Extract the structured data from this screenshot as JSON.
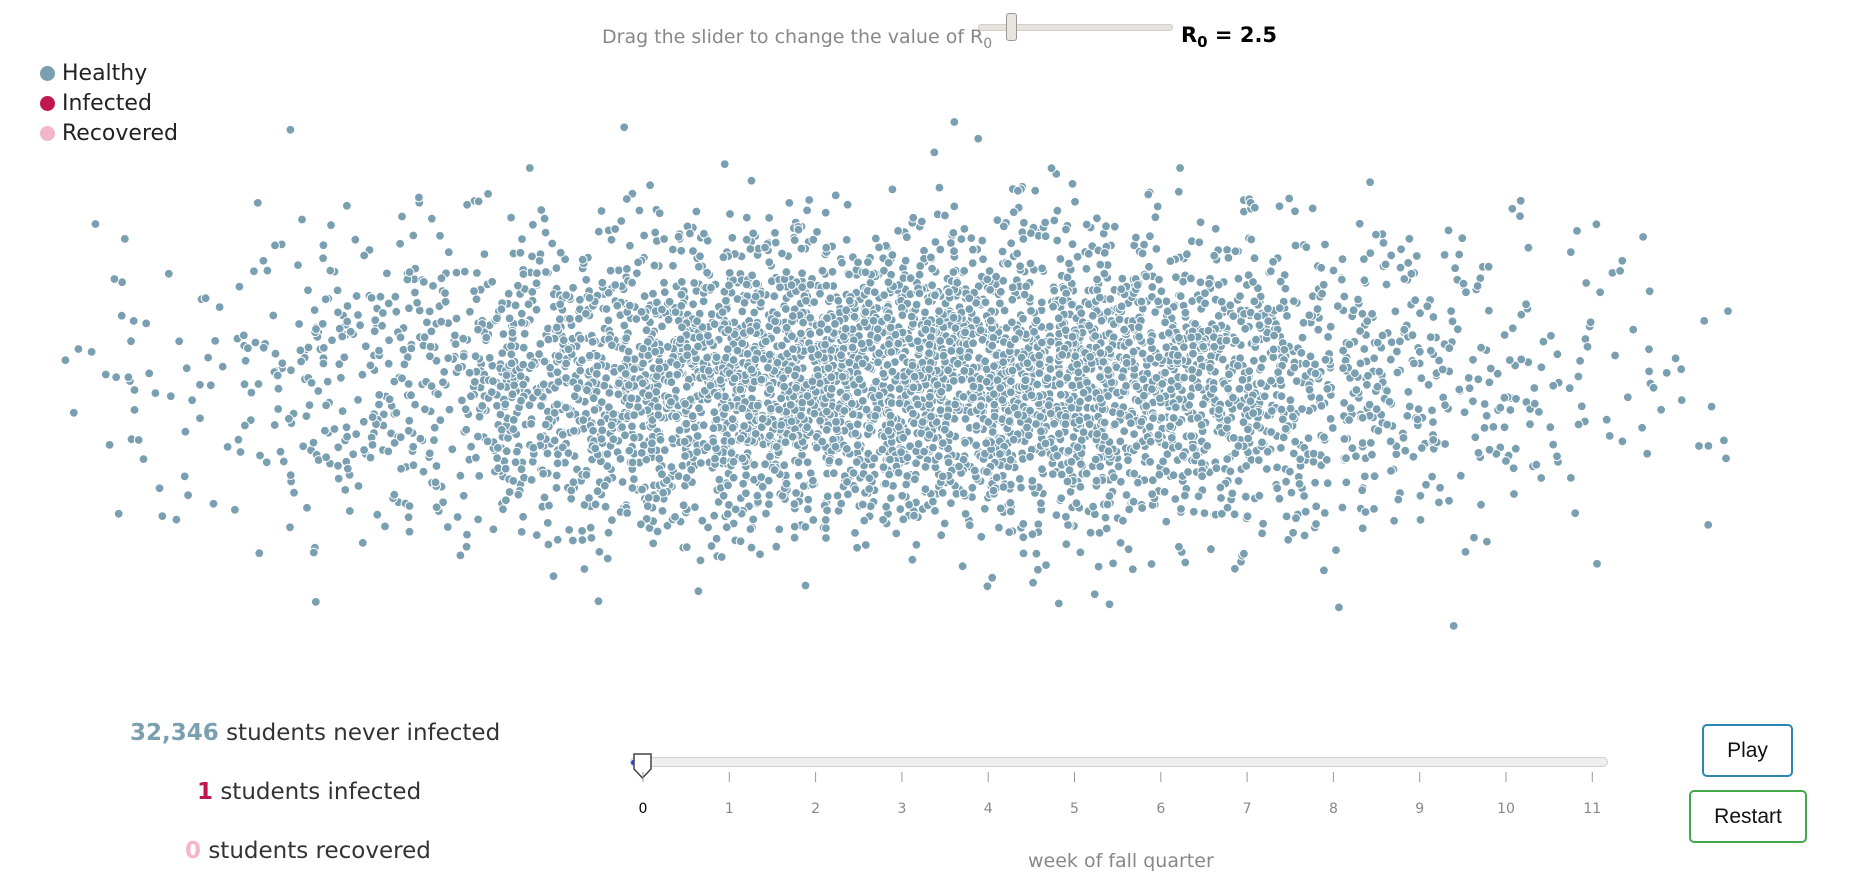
{
  "header": {
    "prompt_text": "Drag the slider to change the value of R",
    "prompt_sub": "0",
    "r0_symbol": "R",
    "r0_sub": "0",
    "r0_equals": " = 2.5",
    "r0_value": 2.5
  },
  "legend": [
    {
      "label": "Healthy",
      "color": "#7a9fb1"
    },
    {
      "label": "Infected",
      "color": "#c0184c"
    },
    {
      "label": "Recovered",
      "color": "#f2b6c6"
    }
  ],
  "stats": {
    "never_infected": {
      "number": "32,346",
      "text": " students never infected",
      "color": "#7a9fb1"
    },
    "infected": {
      "number": "1",
      "text": " students infected",
      "color": "#c0184c"
    },
    "recovered": {
      "number": "0",
      "text": " students recovered",
      "color": "#f2b6c6"
    }
  },
  "timeline": {
    "ticks": [
      "0",
      "1",
      "2",
      "3",
      "4",
      "5",
      "6",
      "7",
      "8",
      "9",
      "10",
      "11"
    ],
    "current_week": 0,
    "axis_label": "week of fall quarter"
  },
  "buttons": {
    "play_label": "Play",
    "restart_label": "Restart"
  },
  "colors": {
    "healthy": "#7a9fb1",
    "infected": "#c0184c",
    "recovered": "#f2b6c6",
    "slider_fill": "#2244dd"
  }
}
